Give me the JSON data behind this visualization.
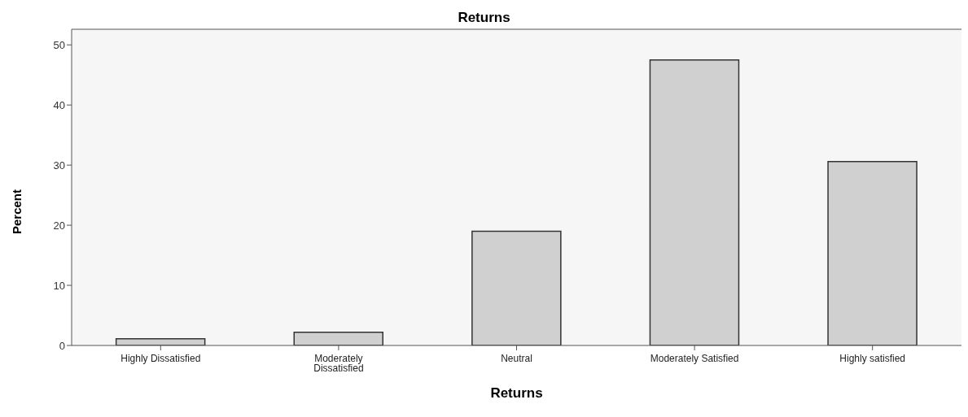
{
  "chart_data": {
    "type": "bar",
    "title": "Returns",
    "xlabel": "Returns",
    "ylabel": "Percent",
    "categories": [
      "Highly Dissatisfied",
      "Moderately Dissatisfied",
      "Neutral",
      "Moderately Satisfied",
      "Highly satisfied"
    ],
    "values": [
      1.1,
      2.2,
      19,
      47.5,
      30.6
    ],
    "color": "#d0d0d0",
    "ylim": [
      0,
      52.6
    ],
    "yticks": [
      0,
      10,
      20,
      30,
      40,
      50
    ],
    "grid": false
  }
}
